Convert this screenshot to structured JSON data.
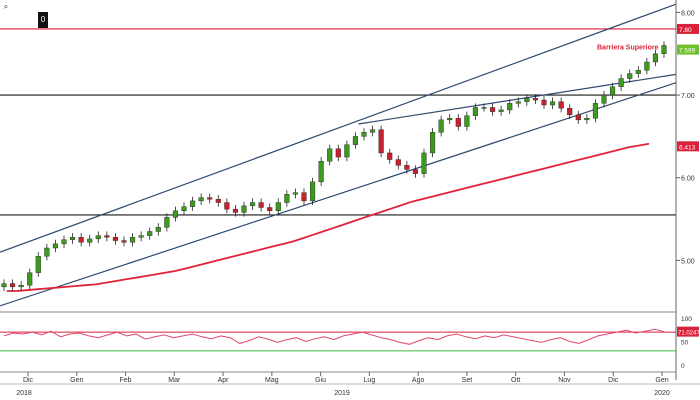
{
  "toolbar": {
    "zoom_icon": "magnifier-icon",
    "reset_label": "0"
  },
  "chart_data": {
    "type": "candlestick",
    "title": "",
    "x_months": [
      "Dic",
      "Gen",
      "Feb",
      "Mar",
      "Apr",
      "Mag",
      "Giu",
      "Lug",
      "Ago",
      "Set",
      "Ott",
      "Nov",
      "Dic",
      "Gen"
    ],
    "x_years": [
      "2018",
      "2019",
      "2020"
    ],
    "y_ticks": [
      "8.00",
      "7.00",
      "6.00",
      "5.00"
    ],
    "ylim": [
      4.4,
      8.15
    ],
    "last_price": "7.599",
    "barrier_value": "7.80",
    "ma_value": "6.413",
    "annotation": "Barriera Superiore",
    "horizontal_levels": [
      7.8,
      7.0,
      5.55
    ],
    "close_series": [
      4.72,
      4.68,
      4.7,
      4.85,
      5.05,
      5.15,
      5.2,
      5.25,
      5.28,
      5.22,
      5.26,
      5.3,
      5.28,
      5.24,
      5.22,
      5.28,
      5.3,
      5.35,
      5.4,
      5.52,
      5.6,
      5.65,
      5.72,
      5.76,
      5.74,
      5.7,
      5.62,
      5.58,
      5.66,
      5.7,
      5.64,
      5.6,
      5.7,
      5.8,
      5.82,
      5.72,
      5.95,
      6.2,
      6.35,
      6.25,
      6.4,
      6.5,
      6.55,
      6.58,
      6.3,
      6.22,
      6.15,
      6.1,
      6.05,
      6.3,
      6.55,
      6.7,
      6.72,
      6.62,
      6.75,
      6.85,
      6.85,
      6.8,
      6.82,
      6.9,
      6.92,
      6.96,
      6.94,
      6.88,
      6.92,
      6.84,
      6.76,
      6.7,
      6.72,
      6.9,
      7.0,
      7.1,
      7.2,
      7.26,
      7.3,
      7.4,
      7.5,
      7.6
    ],
    "moving_average_series": [
      4.63,
      4.63,
      4.64,
      4.65,
      4.66,
      4.67,
      4.68,
      4.69,
      4.7,
      4.71,
      4.73,
      4.75,
      4.77,
      4.79,
      4.81,
      4.83,
      4.85,
      4.87,
      4.9,
      4.93,
      4.96,
      4.99,
      5.02,
      5.05,
      5.08,
      5.11,
      5.14,
      5.17,
      5.2,
      5.23,
      5.27,
      5.31,
      5.35,
      5.39,
      5.43,
      5.47,
      5.51,
      5.55,
      5.59,
      5.63,
      5.67,
      5.71,
      5.74,
      5.77,
      5.8,
      5.83,
      5.86,
      5.89,
      5.92,
      5.95,
      5.98,
      6.01,
      6.04,
      6.07,
      6.1,
      6.13,
      6.16,
      6.19,
      6.22,
      6.25,
      6.28,
      6.31,
      6.34,
      6.37,
      6.39,
      6.41
    ],
    "trendlines": [
      {
        "name": "channel-upper",
        "from": [
          0,
          5.1
        ],
        "to": [
          1,
          8.1
        ]
      },
      {
        "name": "channel-lower",
        "from": [
          0,
          4.45
        ],
        "to": [
          1,
          7.15
        ]
      },
      {
        "name": "resistance",
        "from": [
          0.53,
          6.65
        ],
        "to": [
          1,
          7.25
        ]
      }
    ],
    "oscillator": {
      "y_ticks": [
        "100",
        "50",
        "0"
      ],
      "ylim": [
        0,
        100
      ],
      "upper_band": 70,
      "lower_band": 30,
      "last_value": "71.0247",
      "series": [
        62,
        68,
        66,
        70,
        64,
        72,
        60,
        66,
        68,
        62,
        58,
        64,
        70,
        62,
        66,
        55,
        60,
        64,
        58,
        62,
        66,
        60,
        56,
        62,
        58,
        46,
        52,
        60,
        55,
        48,
        54,
        58,
        50,
        56,
        60,
        54,
        62,
        66,
        70,
        64,
        58,
        54,
        48,
        44,
        52,
        58,
        54,
        62,
        66,
        60,
        56,
        62,
        58,
        64,
        60,
        56,
        52,
        48,
        54,
        58,
        50,
        46,
        54,
        62,
        66,
        70,
        74,
        68,
        72,
        76,
        71
      ]
    }
  }
}
